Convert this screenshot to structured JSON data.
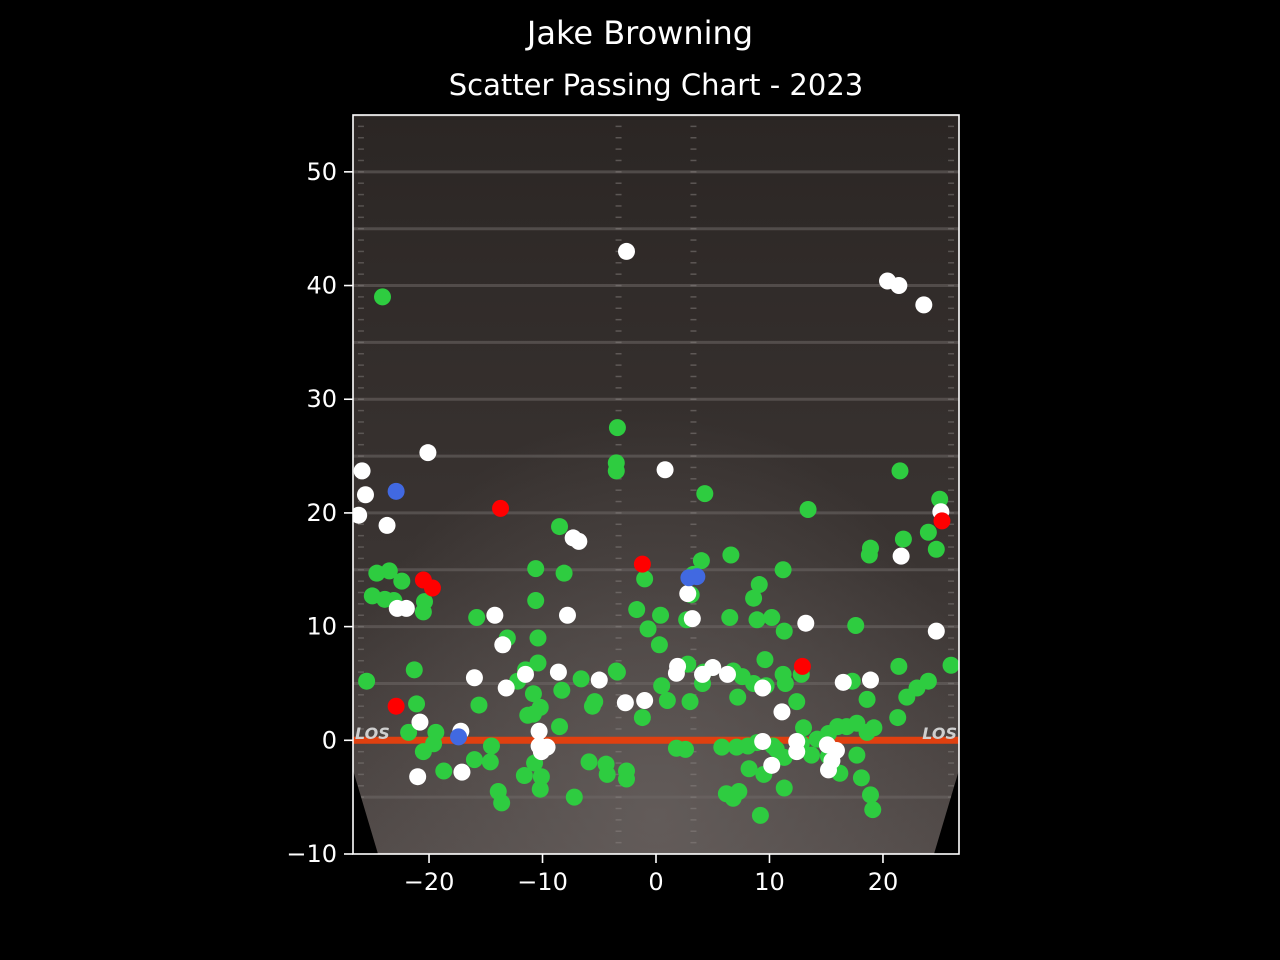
{
  "page_title": "Jake Browning",
  "chart_data": {
    "type": "scatter",
    "title": "Scatter Passing Chart - 2023",
    "xlabel": "",
    "ylabel": "",
    "xlim": [
      -26.7,
      26.7
    ],
    "ylim": [
      -10,
      55
    ],
    "x_ticks": [
      -20,
      -10,
      0,
      10,
      20
    ],
    "x_tick_labels": [
      "−20",
      "−10",
      "0",
      "10",
      "20"
    ],
    "y_ticks": [
      -10,
      0,
      10,
      20,
      30,
      40,
      50
    ],
    "y_tick_labels": [
      "−10",
      "0",
      "10",
      "20",
      "30",
      "40",
      "50"
    ],
    "grid": false,
    "legend": "none",
    "field_markings": [
      "LOS",
      "LOS"
    ],
    "background": "football-field",
    "colors": {
      "complete": "#2ecc40",
      "incomplete": "#ffffff",
      "interception": "#ff0000",
      "touchdown": "#4169e1",
      "line_of_scrimmage": "#e04010"
    },
    "series": [
      {
        "key": "complete",
        "points": [
          [
            -24.1,
            39
          ],
          [
            -3.4,
            27.5
          ],
          [
            -3.5,
            24.4
          ],
          [
            -3.5,
            23.7
          ],
          [
            4.3,
            21.7
          ],
          [
            13.4,
            20.3
          ],
          [
            21.5,
            23.7
          ],
          [
            25,
            21.2
          ],
          [
            24,
            18.3
          ],
          [
            21.8,
            17.7
          ],
          [
            18.9,
            16.9
          ],
          [
            18.8,
            16.3
          ],
          [
            24.7,
            16.8
          ],
          [
            -8.5,
            18.8
          ],
          [
            -10.6,
            15.1
          ],
          [
            -8.1,
            14.7
          ],
          [
            -1,
            14.2
          ],
          [
            3.3,
            14.6
          ],
          [
            4,
            15.8
          ],
          [
            6.6,
            16.3
          ],
          [
            11.2,
            15
          ],
          [
            9.1,
            13.7
          ],
          [
            8.6,
            12.5
          ],
          [
            -24.6,
            14.7
          ],
          [
            -23.5,
            14.9
          ],
          [
            -22.4,
            14
          ],
          [
            -25,
            12.7
          ],
          [
            -23.9,
            12.4
          ],
          [
            -23.1,
            12.3
          ],
          [
            -20.4,
            12.2
          ],
          [
            -20.5,
            11.3
          ],
          [
            -10.6,
            12.3
          ],
          [
            -1.7,
            11.5
          ],
          [
            0.4,
            11
          ],
          [
            -0.7,
            9.8
          ],
          [
            0.3,
            8.4
          ],
          [
            2.7,
            10.6
          ],
          [
            3.1,
            12.8
          ],
          [
            6.5,
            10.8
          ],
          [
            8.9,
            10.6
          ],
          [
            10.2,
            10.8
          ],
          [
            11.3,
            9.6
          ],
          [
            17.6,
            10.1
          ],
          [
            -15.8,
            10.8
          ],
          [
            -13.1,
            9
          ],
          [
            -10.4,
            9
          ],
          [
            -10.4,
            6.8
          ],
          [
            -11.5,
            6.2
          ],
          [
            -21.3,
            6.2
          ],
          [
            -25.5,
            5.2
          ],
          [
            -21.1,
            3.2
          ],
          [
            -15.6,
            3.1
          ],
          [
            -12.2,
            5.2
          ],
          [
            -10.8,
            4.1
          ],
          [
            -8.3,
            4.4
          ],
          [
            -6.6,
            5.4
          ],
          [
            -5.4,
            3.4
          ],
          [
            -5.6,
            3
          ],
          [
            -3.5,
            6.1
          ],
          [
            -3.4,
            6
          ],
          [
            -1.2,
            2
          ],
          [
            0.5,
            4.8
          ],
          [
            1,
            3.5
          ],
          [
            2.8,
            6.7
          ],
          [
            3,
            3.4
          ],
          [
            4.2,
            6
          ],
          [
            4.1,
            5
          ],
          [
            6.8,
            6.1
          ],
          [
            7.2,
            3.8
          ],
          [
            7.6,
            5.6
          ],
          [
            8.6,
            5
          ],
          [
            9.6,
            7.1
          ],
          [
            9.7,
            4.8
          ],
          [
            11.2,
            5.8
          ],
          [
            11.4,
            5
          ],
          [
            12.4,
            3.4
          ],
          [
            12.8,
            5.8
          ],
          [
            15.2,
            0.6
          ],
          [
            17.3,
            5.2
          ],
          [
            18.6,
            3.6
          ],
          [
            21.4,
            6.5
          ],
          [
            21.3,
            2
          ],
          [
            22.1,
            3.8
          ],
          [
            23,
            4.6
          ],
          [
            24,
            5.2
          ],
          [
            26,
            6.6
          ],
          [
            -10.8,
            2.3
          ],
          [
            -11.3,
            2.2
          ],
          [
            -10.2,
            2.9
          ],
          [
            -8.5,
            1.2
          ],
          [
            -21.8,
            0.7
          ],
          [
            -20.5,
            -1
          ],
          [
            -19.4,
            0.7
          ],
          [
            -19.6,
            -0.3
          ],
          [
            -18.7,
            -2.7
          ],
          [
            -16,
            -1.7
          ],
          [
            -14.5,
            -0.5
          ],
          [
            -14.6,
            -1.9
          ],
          [
            -13.9,
            -4.5
          ],
          [
            -13.6,
            -5.5
          ],
          [
            -11.6,
            -3.1
          ],
          [
            -10.7,
            -2
          ],
          [
            -10.1,
            -3.2
          ],
          [
            -10.2,
            -4.3
          ],
          [
            -7.2,
            -5
          ],
          [
            -5.9,
            -1.9
          ],
          [
            -4.4,
            -2.1
          ],
          [
            -4.3,
            -3
          ],
          [
            -2.6,
            -2.7
          ],
          [
            -2.6,
            -3.4
          ],
          [
            1.8,
            -0.7
          ],
          [
            2.6,
            -0.8
          ],
          [
            5.8,
            -0.6
          ],
          [
            6.2,
            -4.7
          ],
          [
            6.8,
            -5.1
          ],
          [
            7.1,
            -0.6
          ],
          [
            7.3,
            -4.5
          ],
          [
            8.1,
            -0.5
          ],
          [
            8.2,
            -2.5
          ],
          [
            8.9,
            -0.2
          ],
          [
            9.5,
            -3
          ],
          [
            9.2,
            -6.6
          ],
          [
            10.3,
            -0.5
          ],
          [
            10.6,
            -0.8
          ],
          [
            11.3,
            -1.5
          ],
          [
            11.3,
            -4.2
          ],
          [
            12.8,
            -0.3
          ],
          [
            13,
            1.1
          ],
          [
            13.7,
            -1.3
          ],
          [
            14.2,
            0.1
          ],
          [
            15.2,
            -1.4
          ],
          [
            16,
            1.2
          ],
          [
            16.2,
            -2.9
          ],
          [
            16.8,
            1.2
          ],
          [
            17.7,
            1.5
          ],
          [
            17.7,
            -1.3
          ],
          [
            18.1,
            -3.3
          ],
          [
            18.6,
            0.7
          ],
          [
            18.9,
            -4.8
          ],
          [
            19.2,
            1.1
          ],
          [
            19.1,
            -6.1
          ]
        ]
      },
      {
        "key": "incomplete",
        "points": [
          [
            -2.6,
            43
          ],
          [
            20.4,
            40.4
          ],
          [
            21.4,
            40
          ],
          [
            23.6,
            38.3
          ],
          [
            -20.1,
            25.3
          ],
          [
            -25.9,
            23.7
          ],
          [
            -25.6,
            21.6
          ],
          [
            -26.2,
            19.8
          ],
          [
            -23.7,
            18.9
          ],
          [
            0.8,
            23.8
          ],
          [
            25.1,
            20.1
          ],
          [
            21.6,
            16.2
          ],
          [
            -7.3,
            17.8
          ],
          [
            -6.8,
            17.5
          ],
          [
            -7.8,
            11
          ],
          [
            -14.2,
            11
          ],
          [
            -13.5,
            8.4
          ],
          [
            -22.8,
            11.6
          ],
          [
            -22,
            11.6
          ],
          [
            2.8,
            12.9
          ],
          [
            3.2,
            10.7
          ],
          [
            13.2,
            10.3
          ],
          [
            24.7,
            9.6
          ],
          [
            -16,
            5.5
          ],
          [
            -13.2,
            4.6
          ],
          [
            -11.5,
            5.8
          ],
          [
            -8.6,
            6
          ],
          [
            -5,
            5.3
          ],
          [
            -2.7,
            3.3
          ],
          [
            -1,
            3.5
          ],
          [
            1.9,
            6.5
          ],
          [
            1.8,
            5.9
          ],
          [
            4.1,
            5.8
          ],
          [
            5,
            6.4
          ],
          [
            6.3,
            5.8
          ],
          [
            9.4,
            4.6
          ],
          [
            11.1,
            2.5
          ],
          [
            16.5,
            5.1
          ],
          [
            18.9,
            5.3
          ],
          [
            -20.8,
            1.6
          ],
          [
            -17.2,
            0.8
          ],
          [
            -10.3,
            0.8
          ],
          [
            -10.3,
            -0.5
          ],
          [
            -10.1,
            -1
          ],
          [
            -9.6,
            -0.6
          ],
          [
            -17.1,
            -2.8
          ],
          [
            -21,
            -3.2
          ],
          [
            9.4,
            -0.1
          ],
          [
            10.2,
            -2.2
          ],
          [
            12.4,
            -0.1
          ],
          [
            12.4,
            -1
          ],
          [
            15.1,
            -0.4
          ],
          [
            15.9,
            -0.9
          ],
          [
            15.5,
            -1.8
          ],
          [
            15.2,
            -2.6
          ]
        ]
      },
      {
        "key": "interception",
        "points": [
          [
            -13.7,
            20.4
          ],
          [
            -20.5,
            14.1
          ],
          [
            -19.7,
            13.4
          ],
          [
            -1.2,
            15.5
          ],
          [
            25.2,
            19.3
          ],
          [
            12.9,
            6.5
          ],
          [
            -22.9,
            3
          ]
        ]
      },
      {
        "key": "touchdown",
        "points": [
          [
            -22.9,
            21.9
          ],
          [
            2.9,
            14.3
          ],
          [
            3.6,
            14.4
          ],
          [
            -17.4,
            0.3
          ]
        ]
      }
    ]
  }
}
